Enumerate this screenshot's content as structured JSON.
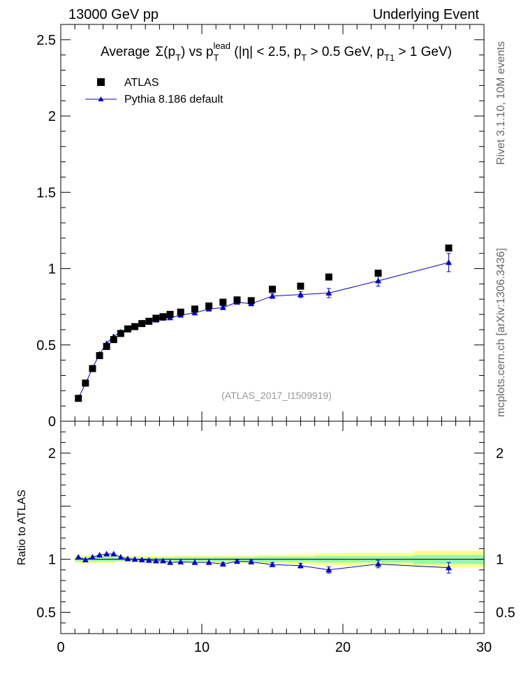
{
  "header": {
    "left": "13000 GeV pp",
    "right": "Underlying Event"
  },
  "side_notes": {
    "rivet": "Rivet 3.1.10,  10M events",
    "mcplots": "mcplots.cern.ch [arXiv:1306.3436]"
  },
  "analysis_label": "(ATLAS_2017_I1509919)",
  "colors": {
    "data": "#000000",
    "mc": "#0000cc",
    "band_inner": "#98f5b0",
    "band_outer": "#ffff88"
  },
  "chart_data": [
    {
      "type": "scatter",
      "title": {
        "average": "Average",
        "sigma": "Σ(p",
        "sigma_sub": "T",
        "vs": ") vs p",
        "lead_sub": "T",
        "lead_sup": "lead",
        "cut1": " (|η| < 2.5, p",
        "cut1_sub": "T",
        "cut2": " > 0.5 GeV, p",
        "cut2_sub": "T1",
        "cut3": " > 1 GeV)"
      },
      "xlim": [
        0,
        30
      ],
      "ylim": [
        0,
        2.6
      ],
      "xticks": [
        "0",
        "10",
        "20",
        "30"
      ],
      "yticks": [
        {
          "v": 0,
          "label": "0"
        },
        {
          "v": 0.5,
          "label": "0.5"
        },
        {
          "v": 1,
          "label": "1"
        },
        {
          "v": 1.5,
          "label": "1.5"
        },
        {
          "v": 2,
          "label": "2"
        },
        {
          "v": 2.5,
          "label": "2.5"
        }
      ],
      "legend": {
        "placement": "top-left",
        "data_name": "ATLAS",
        "mc_name": "Pythia 8.186 default"
      },
      "x": [
        1.25,
        1.75,
        2.25,
        2.75,
        3.25,
        3.75,
        4.25,
        4.75,
        5.25,
        5.75,
        6.25,
        6.75,
        7.25,
        7.75,
        8.5,
        9.5,
        10.5,
        11.5,
        12.5,
        13.5,
        15,
        17,
        19,
        22.5,
        27.5
      ],
      "series": [
        {
          "name": "ATLAS",
          "values": [
            0.15,
            0.25,
            0.345,
            0.43,
            0.49,
            0.535,
            0.575,
            0.605,
            0.62,
            0.64,
            0.655,
            0.675,
            0.685,
            0.7,
            0.715,
            0.735,
            0.755,
            0.78,
            0.795,
            0.79,
            0.865,
            0.885,
            0.945,
            0.97,
            1.135
          ]
        },
        {
          "name": "Pythia 8.186 default",
          "values": [
            0.153,
            0.245,
            0.348,
            0.44,
            0.51,
            0.555,
            0.585,
            0.608,
            0.62,
            0.638,
            0.65,
            0.663,
            0.675,
            0.678,
            0.695,
            0.71,
            0.735,
            0.745,
            0.78,
            0.77,
            0.82,
            0.83,
            0.84,
            0.92,
            1.04
          ],
          "errors": [
            0.005,
            0.005,
            0.005,
            0.005,
            0.005,
            0.005,
            0.005,
            0.005,
            0.005,
            0.006,
            0.006,
            0.006,
            0.007,
            0.007,
            0.007,
            0.008,
            0.009,
            0.01,
            0.012,
            0.012,
            0.015,
            0.02,
            0.03,
            0.035,
            0.06
          ]
        }
      ]
    },
    {
      "type": "scatter",
      "ylabel": "Ratio to ATLAS",
      "xlim": [
        0,
        30
      ],
      "ylim": [
        0.3,
        2.3
      ],
      "xticks": [
        {
          "v": 0,
          "label": "0"
        },
        {
          "v": 10,
          "label": "10"
        },
        {
          "v": 20,
          "label": "20"
        },
        {
          "v": 30,
          "label": "30"
        }
      ],
      "yticks": [
        {
          "v": 0.5,
          "label": "0.5"
        },
        {
          "v": 1,
          "label": "1"
        },
        {
          "v": 2,
          "label": "2"
        }
      ],
      "x": [
        1.25,
        1.75,
        2.25,
        2.75,
        3.25,
        3.75,
        4.25,
        4.75,
        5.25,
        5.75,
        6.25,
        6.75,
        7.25,
        7.75,
        8.5,
        9.5,
        10.5,
        11.5,
        12.5,
        13.5,
        15,
        17,
        19,
        22.5,
        27.5
      ],
      "series": [
        {
          "name": "Pythia 8.186 default",
          "values": [
            1.02,
            0.995,
            1.02,
            1.04,
            1.05,
            1.05,
            1.02,
            1.005,
            1.0,
            0.995,
            0.99,
            0.985,
            0.985,
            0.97,
            0.975,
            0.97,
            0.97,
            0.955,
            0.98,
            0.975,
            0.95,
            0.94,
            0.9,
            0.955,
            0.92
          ],
          "errors": [
            0.01,
            0.01,
            0.01,
            0.01,
            0.01,
            0.01,
            0.01,
            0.01,
            0.01,
            0.01,
            0.01,
            0.01,
            0.01,
            0.01,
            0.01,
            0.011,
            0.012,
            0.013,
            0.015,
            0.015,
            0.018,
            0.022,
            0.03,
            0.035,
            0.05
          ]
        }
      ],
      "bands": [
        {
          "x0": 1.0,
          "x1": 4.0,
          "outer": [
            0.965,
            1.035
          ],
          "inner": [
            0.98,
            1.02
          ]
        },
        {
          "x0": 4.0,
          "x1": 8.0,
          "outer": [
            0.975,
            1.03
          ],
          "inner": [
            0.985,
            1.015
          ]
        },
        {
          "x0": 8.0,
          "x1": 14.0,
          "outer": [
            0.965,
            1.035
          ],
          "inner": [
            0.98,
            1.02
          ]
        },
        {
          "x0": 14.0,
          "x1": 16.0,
          "outer": [
            0.96,
            1.04
          ],
          "inner": [
            0.975,
            1.025
          ]
        },
        {
          "x0": 16.0,
          "x1": 18.0,
          "outer": [
            0.955,
            1.045
          ],
          "inner": [
            0.975,
            1.025
          ]
        },
        {
          "x0": 18.0,
          "x1": 20.0,
          "outer": [
            0.945,
            1.055
          ],
          "inner": [
            0.97,
            1.03
          ]
        },
        {
          "x0": 20.0,
          "x1": 25.0,
          "outer": [
            0.945,
            1.06
          ],
          "inner": [
            0.97,
            1.03
          ]
        },
        {
          "x0": 25.0,
          "x1": 30.0,
          "outer": [
            0.925,
            1.08
          ],
          "inner": [
            0.955,
            1.04
          ]
        }
      ]
    }
  ]
}
